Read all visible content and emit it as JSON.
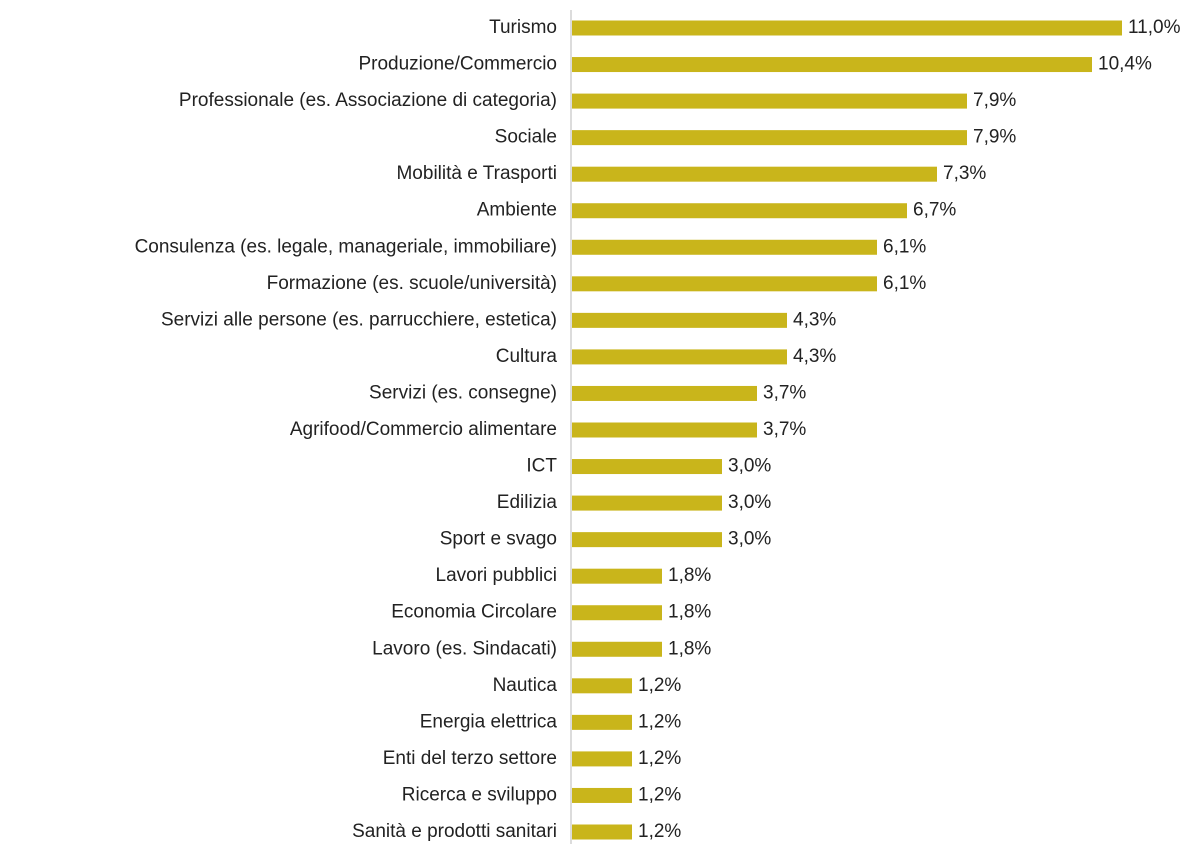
{
  "chart_data": {
    "type": "hbar",
    "categories": [
      "Turismo",
      "Produzione/Commercio",
      "Professionale (es. Associazione di categoria)",
      "Sociale",
      "Mobilità e Trasporti",
      "Ambiente",
      "Consulenza (es. legale, manageriale, immobiliare)",
      "Formazione (es. scuole/università)",
      "Servizi alle persone (es. parrucchiere, estetica)",
      "Cultura",
      "Servizi (es. consegne)",
      "Agrifood/Commercio alimentare",
      "ICT",
      "Edilizia",
      "Sport e svago",
      "Lavori pubblici",
      "Economia Circolare",
      "Lavoro (es. Sindacati)",
      "Nautica",
      "Energia elettrica",
      "Enti del terzo settore",
      "Ricerca e sviluppo",
      "Sanità e prodotti sanitari"
    ],
    "values": [
      11.0,
      10.4,
      7.9,
      7.9,
      7.3,
      6.7,
      6.1,
      6.1,
      4.3,
      4.3,
      3.7,
      3.7,
      3.0,
      3.0,
      3.0,
      1.8,
      1.8,
      1.8,
      1.2,
      1.2,
      1.2,
      1.2,
      1.2
    ],
    "value_labels": [
      "11,0%",
      "10,4%",
      "7,9%",
      "7,9%",
      "7,3%",
      "6,7%",
      "6,1%",
      "6,1%",
      "4,3%",
      "4,3%",
      "3,7%",
      "3,7%",
      "3,0%",
      "3,0%",
      "3,0%",
      "1,8%",
      "1,8%",
      "1,8%",
      "1,2%",
      "1,2%",
      "1,2%",
      "1,2%",
      "1,2%"
    ],
    "color": "#c9b51b"
  }
}
